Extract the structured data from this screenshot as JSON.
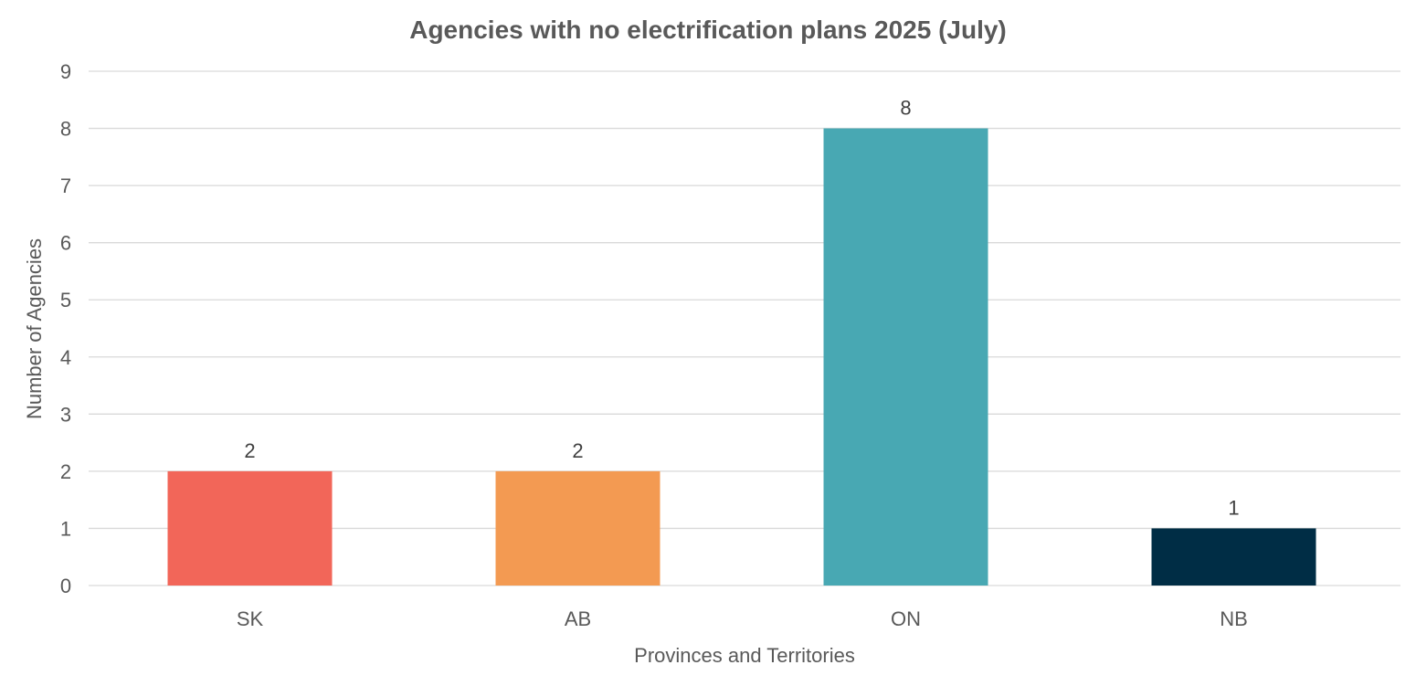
{
  "chart_data": {
    "type": "bar",
    "title": "Agencies with no electrification plans 2025 (July)",
    "xlabel": "Provinces and Territories",
    "ylabel": "Number of Agencies",
    "categories": [
      "SK",
      "AB",
      "ON",
      "NB"
    ],
    "values": [
      2,
      2,
      8,
      1
    ],
    "data_labels": [
      "2",
      "2",
      "8",
      "1"
    ],
    "colors": [
      "#f26659",
      "#f39a52",
      "#48a8b3",
      "#002d45"
    ],
    "ylim": [
      0,
      9
    ],
    "yticks": [
      "0",
      "1",
      "2",
      "3",
      "4",
      "5",
      "6",
      "7",
      "8",
      "9"
    ],
    "grid": true,
    "legend": "none"
  }
}
